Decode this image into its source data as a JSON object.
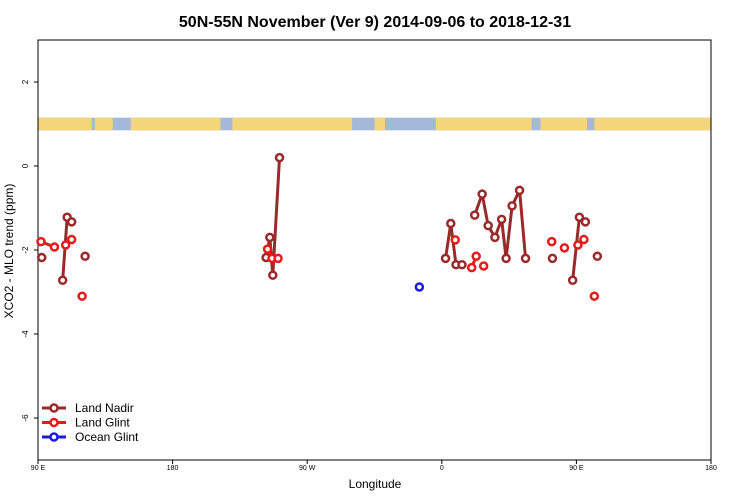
{
  "chart_data": {
    "type": "line",
    "title": "50N-55N November (Ver 9)   2014-09-06 to 2018-12-31",
    "xlabel": "Longitude",
    "ylabel": "XCO2 - MLO trend (ppm)",
    "xlim": [
      90,
      450
    ],
    "ylim": [
      -7,
      3
    ],
    "x_ticks": [
      {
        "value": 90,
        "label": "90 E"
      },
      {
        "value": 180,
        "label": "180"
      },
      {
        "value": 270,
        "label": "90 W"
      },
      {
        "value": 360,
        "label": "0"
      },
      {
        "value": 450,
        "label": "90 E"
      },
      {
        "value": 540,
        "label": "180"
      }
    ],
    "x_ticks_note": "x axis wraps; displayed range covers 90E through 180 of next cycle",
    "y_ticks": [
      {
        "value": 2,
        "label": "2"
      },
      {
        "value": 0,
        "label": "0"
      },
      {
        "value": -2,
        "label": "-2"
      },
      {
        "value": -4,
        "label": "-4"
      },
      {
        "value": -6,
        "label": "-6"
      }
    ],
    "legend_position": "bottom-left",
    "land_band": {
      "y_range": [
        0.85,
        1.15
      ],
      "land_color": "#F5D57A",
      "ocean_color": "#A4B8D8"
    },
    "series": [
      {
        "name": "Land Nadir",
        "color": "#9A2A2A",
        "segments": [
          [
            [
              92.5,
              -2.18
            ]
          ],
          [
            [
              106.5,
              -2.72
            ],
            [
              109.5,
              -1.22
            ],
            [
              112.5,
              -1.33
            ]
          ],
          [
            [
              121.5,
              -2.15
            ]
          ],
          [
            [
              242.5,
              -2.18
            ],
            [
              245,
              -1.7
            ],
            [
              247,
              -2.6
            ],
            [
              251.5,
              0.2
            ]
          ],
          [
            [
              362.5,
              -2.2
            ],
            [
              366,
              -1.37
            ],
            [
              369.5,
              -2.35
            ],
            [
              373.5,
              -2.35
            ]
          ],
          [
            [
              382,
              -1.17
            ],
            [
              387,
              -0.67
            ],
            [
              391,
              -1.42
            ],
            [
              395.5,
              -1.7
            ],
            [
              400,
              -1.27
            ],
            [
              403,
              -2.2
            ],
            [
              407,
              -0.95
            ],
            [
              412,
              -0.58
            ],
            [
              416,
              -2.2
            ]
          ],
          [
            [
              434,
              -2.2
            ]
          ],
          [
            [
              447.5,
              -2.72
            ],
            [
              452,
              -1.22
            ],
            [
              456,
              -1.33
            ]
          ],
          [
            [
              464,
              -2.15
            ]
          ]
        ]
      },
      {
        "name": "Land Glint",
        "color": "#E61A1A",
        "segments": [
          [
            [
              92,
              -1.8
            ],
            [
              101,
              -1.93
            ]
          ],
          [
            [
              108.5,
              -1.88
            ],
            [
              112.5,
              -1.75
            ]
          ],
          [
            [
              119.5,
              -3.1
            ]
          ],
          [
            [
              243.5,
              -1.98
            ],
            [
              246.5,
              -2.2
            ],
            [
              250.5,
              -2.2
            ]
          ],
          [
            [
              369,
              -1.76
            ]
          ],
          [
            [
              380,
              -2.42
            ],
            [
              383,
              -2.15
            ]
          ],
          [
            [
              388,
              -2.38
            ]
          ],
          [
            [
              433.5,
              -1.8
            ]
          ],
          [
            [
              442,
              -1.95
            ]
          ],
          [
            [
              451,
              -1.88
            ],
            [
              455,
              -1.75
            ]
          ],
          [
            [
              462,
              -3.1
            ]
          ]
        ]
      },
      {
        "name": "Ocean Glint",
        "color": "#1A1AE6",
        "segments": [
          [
            [
              345,
              -2.88
            ]
          ]
        ]
      }
    ]
  }
}
